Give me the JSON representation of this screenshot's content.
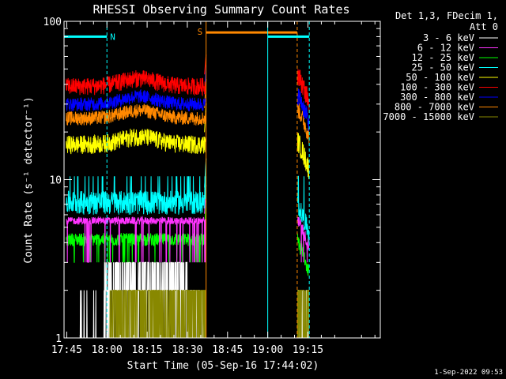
{
  "chart_data": {
    "type": "line",
    "title": "RHESSI Observing Summary Count Rates",
    "xlabel": "Start Time (05-Sep-16 17:44:02)",
    "ylabel": "Count Rate (s⁻¹ detector⁻¹)",
    "yscale": "log",
    "ylim": [
      1,
      100
    ],
    "xlim_minutes": [
      -1,
      117
    ],
    "x_units": "minutes since 17:45",
    "x_ticks": [
      {
        "t": 0,
        "label": "17:45"
      },
      {
        "t": 15,
        "label": "18:00"
      },
      {
        "t": 30,
        "label": "18:15"
      },
      {
        "t": 45,
        "label": "18:30"
      },
      {
        "t": 60,
        "label": "18:45"
      },
      {
        "t": 75,
        "label": "19:00"
      },
      {
        "t": 90,
        "label": "19:15"
      }
    ],
    "y_ticks": [
      {
        "v": 1,
        "label": "1"
      },
      {
        "v": 10,
        "label": "10"
      },
      {
        "v": 100,
        "label": "100"
      }
    ],
    "legend_header": [
      "Det 1,3, FDecim 1,",
      "Att 0"
    ],
    "series": [
      {
        "name": "3 - 6 keV",
        "color": "#ffffff",
        "pre": [
          1.0,
          2.0
        ],
        "post": [
          1.0,
          2.0
        ]
      },
      {
        "name": "6 - 12 keV",
        "color": "#ff33ff",
        "pre": [
          5.2,
          5.8
        ],
        "post": [
          5.2,
          6.2
        ]
      },
      {
        "name": "12 - 25 keV",
        "color": "#00ff00",
        "pre": [
          3.8,
          4.6
        ],
        "post": [
          3.6,
          4.6
        ]
      },
      {
        "name": "25 - 50 keV",
        "color": "#00ffff",
        "pre": [
          6.0,
          8.5
        ],
        "post": [
          6.0,
          8.0
        ]
      },
      {
        "name": "50 - 100 keV",
        "color": "#ffff00",
        "pre": [
          14.5,
          19.0
        ],
        "post": [
          15.0,
          20.5
        ]
      },
      {
        "name": "100 - 300 keV",
        "color": "#ff0000",
        "pre": [
          34.0,
          44.0
        ],
        "post": [
          40.0,
          54.0
        ]
      },
      {
        "name": "300 - 800 keV",
        "color": "#0000ff",
        "pre": [
          27.0,
          33.0
        ],
        "post": [
          30.0,
          40.0
        ]
      },
      {
        "name": "800 - 7000 keV",
        "color": "#ff8800",
        "pre": [
          22.0,
          27.0
        ],
        "post": [
          25.0,
          32.0
        ]
      },
      {
        "name": "7000 - 15000 keV",
        "color": "#888800",
        "pre": [
          1.0,
          2.0
        ],
        "post": [
          1.0,
          2.0
        ]
      }
    ],
    "annotations": [
      {
        "text": "N",
        "color": "#00ffff"
      },
      {
        "text": "S",
        "color": "#ff8800"
      }
    ],
    "intervals": {
      "night_1": [
        -1,
        15
      ],
      "saa": [
        52,
        75
      ],
      "night_2": [
        75,
        86
      ]
    },
    "data_gap": [
      52,
      86
    ],
    "footer_date": "1-Sep-2022 09:53"
  }
}
